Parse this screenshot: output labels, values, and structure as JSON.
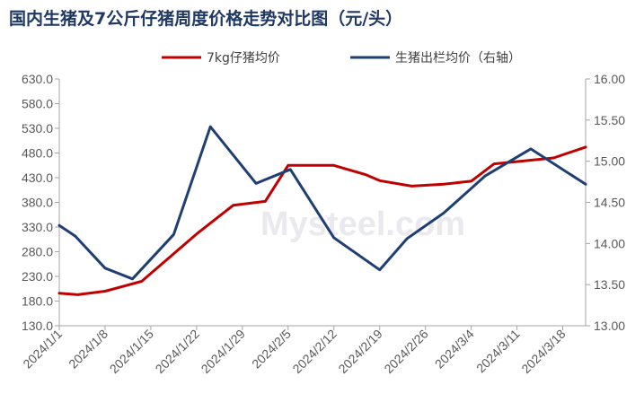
{
  "title": "国内生猪及7公斤仔猪周度价格走势对比图（元/头）",
  "watermark": "Mysteel.com",
  "colors": {
    "piglet": "#c00000",
    "hog": "#1f3f73",
    "axis": "#a6a6a6"
  },
  "chart_data": {
    "type": "line",
    "title": "国内生猪及7公斤仔猪周度价格走势对比图（元/头）",
    "legend_position": "top",
    "grid": false,
    "x_labels": [
      "2024/1/1",
      "2024/1/8",
      "2024/1/15",
      "2024/1/22",
      "2024/1/29",
      "2024/2/5",
      "2024/2/12",
      "2024/2/19",
      "2024/2/26",
      "2024/3/4",
      "2024/3/11",
      "2024/3/18"
    ],
    "x_range": [
      0,
      11.5
    ],
    "y_left": {
      "range": [
        130,
        630
      ],
      "ticks": [
        "130.0",
        "180.0",
        "230.0",
        "280.0",
        "330.0",
        "380.0",
        "430.0",
        "480.0",
        "530.0",
        "580.0",
        "630.0"
      ]
    },
    "y_right": {
      "range": [
        13.0,
        16.0
      ],
      "ticks": [
        "13.00",
        "13.50",
        "14.00",
        "14.50",
        "15.00",
        "15.50",
        "16.00"
      ]
    },
    "series": [
      {
        "name": "7kg仔猪均价",
        "axis": "left",
        "color": "#c00000",
        "x": [
          0,
          0.4,
          1,
          1.8,
          3,
          3.8,
          4.5,
          5,
          6,
          6.7,
          7,
          7.7,
          8.4,
          9,
          9.5,
          10.8,
          11.5
        ],
        "values": [
          196,
          193,
          200,
          220,
          316,
          374,
          382,
          455,
          455,
          436,
          424,
          413,
          417,
          423,
          458,
          470,
          492
        ]
      },
      {
        "name": "生猪出栏均价（右轴）",
        "axis": "right",
        "color": "#1f3f73",
        "x": [
          0,
          0.35,
          1,
          1.6,
          2.5,
          3.3,
          4.3,
          5.05,
          6,
          7,
          7.6,
          8.4,
          9.3,
          10.3,
          11.5
        ],
        "values": [
          14.22,
          14.09,
          13.7,
          13.57,
          14.11,
          15.42,
          14.73,
          14.9,
          14.07,
          13.68,
          14.06,
          14.37,
          14.82,
          15.15,
          14.72
        ]
      }
    ]
  }
}
